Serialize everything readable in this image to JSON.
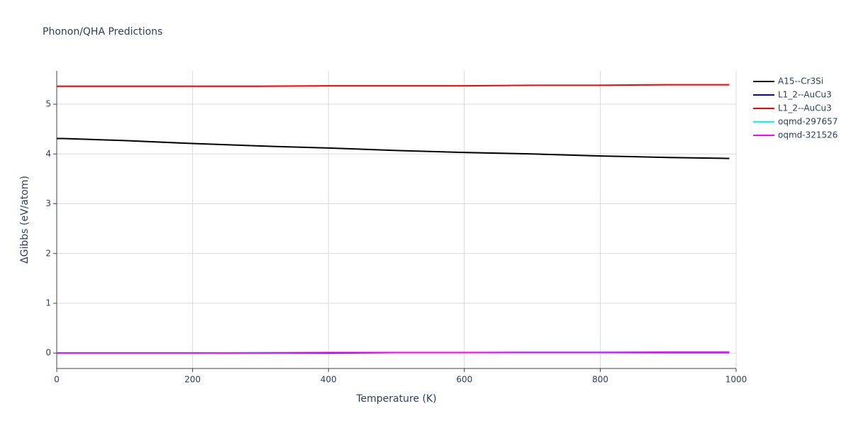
{
  "chart_data": {
    "type": "line",
    "title": "Phonon/QHA Predictions",
    "x_label": "Temperature (K)",
    "y_label": "ΔGibbs (eV/atom)",
    "x": [
      0,
      10,
      100,
      200,
      300,
      400,
      500,
      600,
      700,
      800,
      900,
      990
    ],
    "series": [
      {
        "name": "A15--Cr3Si",
        "color": "#000000",
        "values": [
          4.31,
          4.31,
          4.27,
          4.21,
          4.16,
          4.12,
          4.07,
          4.03,
          4.0,
          3.96,
          3.93,
          3.91
        ]
      },
      {
        "name": "L1_2--AuCu3",
        "color": "#0000ff",
        "values": [
          0.0,
          0.0,
          0.0,
          0.0,
          0.0,
          0.0,
          0.01,
          0.01,
          0.01,
          0.01,
          0.01,
          0.01
        ]
      },
      {
        "name": "L1_2--AuCu3",
        "color": "#ff0000",
        "values": [
          5.36,
          5.36,
          5.36,
          5.36,
          5.36,
          5.37,
          5.37,
          5.37,
          5.38,
          5.38,
          5.39,
          5.39
        ]
      },
      {
        "name": "oqmd-297657",
        "color": "#00ffff",
        "values": [
          0.0,
          0.0,
          0.0,
          0.0,
          0.01,
          0.01,
          0.01,
          0.01,
          0.02,
          0.02,
          0.02,
          0.02
        ]
      },
      {
        "name": "oqmd-321526",
        "color": "#ff00ff",
        "values": [
          0.0,
          0.0,
          0.0,
          0.0,
          0.0,
          0.01,
          0.01,
          0.01,
          0.01,
          0.01,
          0.02,
          0.02
        ]
      }
    ],
    "xlim": [
      0,
      1000
    ],
    "xticks": [
      0,
      200,
      400,
      600,
      800,
      1000
    ],
    "ylim": [
      -0.31,
      5.67
    ],
    "yticks": [
      0,
      1,
      2,
      3,
      4,
      5
    ],
    "grid": true,
    "legend": "right"
  }
}
